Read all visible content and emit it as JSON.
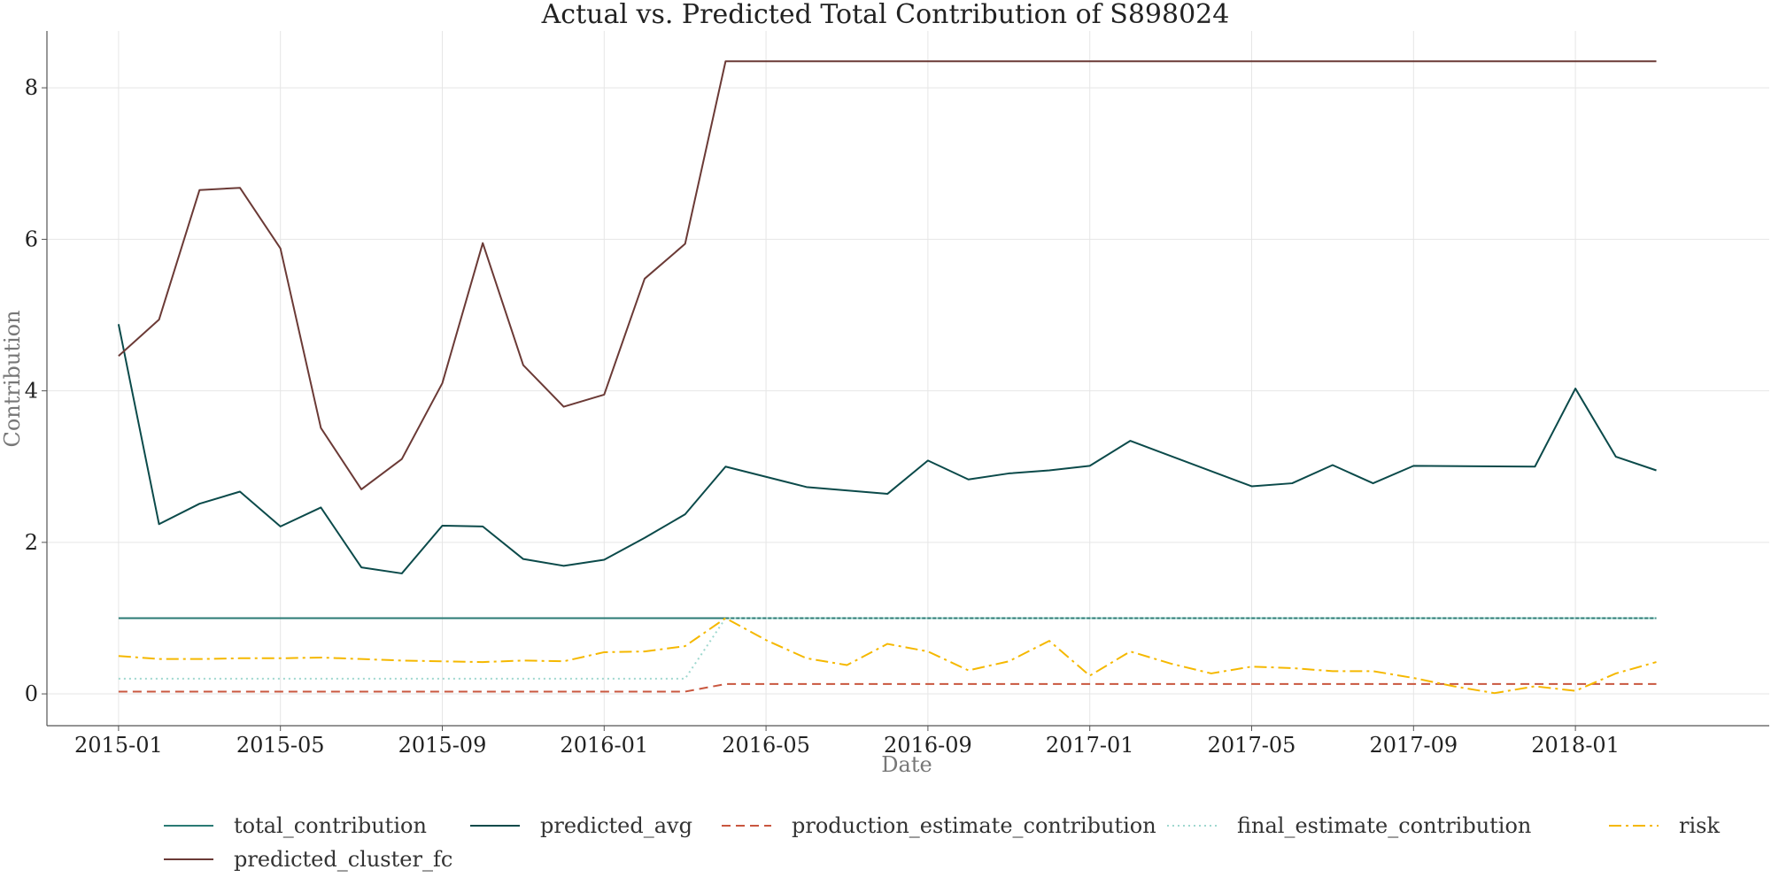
{
  "chart_data": {
    "type": "line",
    "title": "Actual vs. Predicted Total Contribution of S898024",
    "xlabel": "Date",
    "ylabel": "Contribution",
    "xlim": [
      "2014-11-08",
      "2018-05-25"
    ],
    "ylim": [
      -0.42,
      8.75
    ],
    "grid": true,
    "legend_placement": "bottom",
    "x_ticks": [
      "2015-01",
      "2015-05",
      "2015-09",
      "2016-01",
      "2016-05",
      "2016-09",
      "2017-01",
      "2017-05",
      "2017-09",
      "2018-01"
    ],
    "y_ticks": [
      0,
      2,
      4,
      6,
      8
    ],
    "x": [
      "2015-01",
      "2015-02",
      "2015-03",
      "2015-04",
      "2015-05",
      "2015-06",
      "2015-07",
      "2015-08",
      "2015-09",
      "2015-10",
      "2015-11",
      "2015-12",
      "2016-01",
      "2016-02",
      "2016-03",
      "2016-04",
      "2016-05",
      "2016-06",
      "2016-07",
      "2016-08",
      "2016-09",
      "2016-10",
      "2016-11",
      "2016-12",
      "2017-01",
      "2017-02",
      "2017-03",
      "2017-04",
      "2017-05",
      "2017-06",
      "2017-07",
      "2017-08",
      "2017-09",
      "2017-10",
      "2017-11",
      "2017-12",
      "2018-01",
      "2018-02",
      "2018-03"
    ],
    "series": [
      {
        "name": "total_contribution",
        "color": "#2a7a74",
        "style": "solid",
        "values": [
          1.0,
          1.0,
          1.0,
          1.0,
          1.0,
          1.0,
          1.0,
          1.0,
          1.0,
          1.0,
          1.0,
          1.0,
          1.0,
          1.0,
          1.0,
          1.0,
          1.0,
          1.0,
          1.0,
          1.0,
          1.0,
          1.0,
          1.0,
          1.0,
          1.0,
          1.0,
          1.0,
          1.0,
          1.0,
          1.0,
          1.0,
          1.0,
          1.0,
          1.0,
          1.0,
          1.0,
          1.0,
          1.0,
          1.0
        ]
      },
      {
        "name": "predicted_avg",
        "color": "#0b4a4a",
        "style": "solid",
        "values": [
          4.88,
          2.24,
          2.51,
          2.67,
          2.21,
          2.46,
          1.67,
          1.59,
          2.22,
          2.21,
          1.78,
          1.69,
          1.77,
          2.06,
          2.37,
          3.0,
          null,
          2.73,
          null,
          2.64,
          3.08,
          2.83,
          2.91,
          2.95,
          3.01,
          3.34,
          null,
          null,
          2.74,
          2.78,
          3.02,
          2.78,
          3.01,
          null,
          null,
          3.0,
          4.03,
          3.13,
          2.95
        ]
      },
      {
        "name": "production_estimate_contribution",
        "color": "#c9573f",
        "style": "dashed",
        "values": [
          0.03,
          0.03,
          0.03,
          0.03,
          0.03,
          0.03,
          0.03,
          0.03,
          0.03,
          0.03,
          0.03,
          0.03,
          0.03,
          0.03,
          0.03,
          0.13,
          0.13,
          0.13,
          0.13,
          0.13,
          0.13,
          0.13,
          0.13,
          0.13,
          0.13,
          0.13,
          0.13,
          0.13,
          0.13,
          0.13,
          0.13,
          0.13,
          0.13,
          0.13,
          0.13,
          0.13,
          0.13,
          0.13,
          0.13
        ]
      },
      {
        "name": "final_estimate_contribution",
        "color": "#9fd8cf",
        "style": "dotted",
        "values": [
          0.2,
          0.2,
          0.2,
          0.2,
          0.2,
          0.2,
          0.2,
          0.2,
          0.2,
          0.2,
          0.2,
          0.2,
          0.2,
          0.2,
          0.2,
          1.0,
          1.0,
          1.0,
          1.0,
          1.0,
          1.0,
          1.0,
          1.0,
          1.0,
          1.0,
          1.0,
          1.0,
          1.0,
          1.0,
          1.0,
          1.0,
          1.0,
          1.0,
          1.0,
          1.0,
          1.0,
          1.0,
          1.0,
          1.0
        ]
      },
      {
        "name": "risk",
        "color": "#f5b800",
        "style": "dashdot",
        "values": [
          0.5,
          0.46,
          0.46,
          0.47,
          0.47,
          0.48,
          0.46,
          0.44,
          0.43,
          0.42,
          0.44,
          0.43,
          0.55,
          0.56,
          0.63,
          1.0,
          0.71,
          0.47,
          0.38,
          0.66,
          0.56,
          0.31,
          0.43,
          0.7,
          0.24,
          0.56,
          0.4,
          0.27,
          0.36,
          0.34,
          0.3,
          0.3,
          0.21,
          0.1,
          0.01,
          0.1,
          0.04,
          0.27,
          0.42
        ]
      },
      {
        "name": "predicted_cluster_fc",
        "color": "#6b3a36",
        "style": "solid",
        "values": [
          4.46,
          4.94,
          6.65,
          6.68,
          5.88,
          3.51,
          2.7,
          3.1,
          4.1,
          5.95,
          4.34,
          3.79,
          3.95,
          5.48,
          5.94,
          8.35,
          8.35,
          8.35,
          8.35,
          8.35,
          8.35,
          8.35,
          8.35,
          8.35,
          8.35,
          8.35,
          8.35,
          8.35,
          8.35,
          8.35,
          8.35,
          8.35,
          8.35,
          8.35,
          8.35,
          8.35,
          8.35,
          8.35,
          8.35
        ]
      }
    ]
  }
}
